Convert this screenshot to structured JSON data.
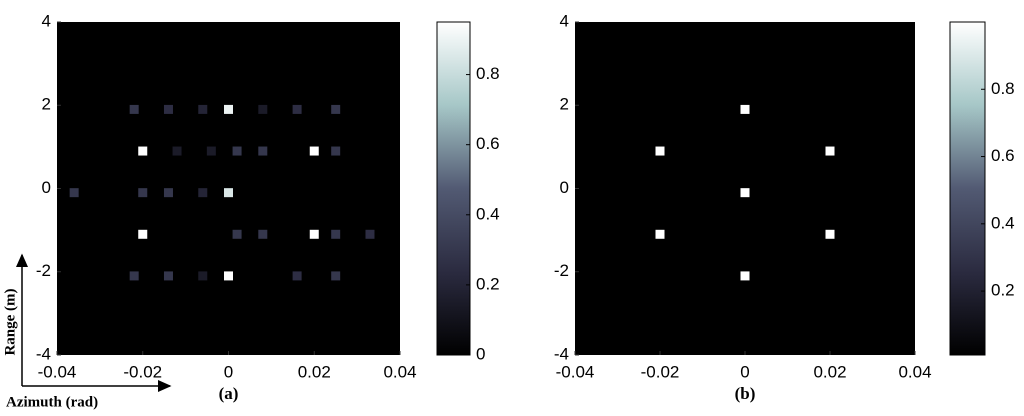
{
  "chart_data": [
    {
      "type": "heatmap",
      "caption": "(a)",
      "xlabel": "Azimuth (rad)",
      "ylabel": "Range (m)",
      "xlim": [
        -0.04,
        0.04
      ],
      "xticks": [
        -0.04,
        -0.02,
        0,
        0.02,
        0.04
      ],
      "ylim": [
        -4,
        4
      ],
      "yticks": [
        -4,
        -2,
        0,
        2,
        4
      ],
      "clim": [
        0,
        0.95
      ],
      "cticks": [
        0,
        0.2,
        0.4,
        0.6,
        0.8
      ],
      "colormap": [
        "#000000",
        "#2b2b40",
        "#525a73",
        "#a6c7c7",
        "#ffffff"
      ],
      "x": [
        -0.02,
        -0.02,
        0.02,
        0.02,
        0,
        0,
        0,
        -0.022,
        -0.014,
        -0.006,
        0.008,
        0.016,
        0.025,
        -0.012,
        -0.004,
        0.002,
        0.008,
        0.025,
        -0.036,
        -0.02,
        -0.014,
        -0.006,
        0.002,
        0.008,
        0.025,
        0.033,
        -0.022,
        -0.014,
        -0.006,
        0.016,
        0.025
      ],
      "y": [
        0.9,
        -1.1,
        0.9,
        -1.1,
        1.9,
        -0.1,
        -2.1,
        1.9,
        1.9,
        1.9,
        1.9,
        1.9,
        1.9,
        0.9,
        0.9,
        0.9,
        0.9,
        0.9,
        -0.1,
        -0.1,
        -0.1,
        -0.1,
        -1.1,
        -1.1,
        -1.1,
        -1.1,
        -2.1,
        -2.1,
        -2.1,
        -2.1,
        -2.1
      ],
      "values": [
        0.95,
        0.95,
        0.95,
        0.95,
        0.9,
        0.85,
        0.95,
        0.3,
        0.25,
        0.2,
        0.15,
        0.25,
        0.3,
        0.15,
        0.15,
        0.3,
        0.3,
        0.3,
        0.3,
        0.3,
        0.3,
        0.2,
        0.3,
        0.3,
        0.3,
        0.25,
        0.3,
        0.3,
        0.15,
        0.25,
        0.3
      ]
    },
    {
      "type": "heatmap",
      "caption": "(b)",
      "xlim": [
        -0.04,
        0.04
      ],
      "xticks": [
        -0.04,
        -0.02,
        0,
        0.02,
        0.04
      ],
      "ylim": [
        -4,
        4
      ],
      "yticks": [
        -4,
        -2,
        0,
        2,
        4
      ],
      "clim": [
        0.01,
        1
      ],
      "cticks": [
        0.2,
        0.4,
        0.6,
        0.8
      ],
      "colormap": [
        "#000000",
        "#2b2b40",
        "#525a73",
        "#a6c7c7",
        "#ffffff"
      ],
      "x": [
        -0.02,
        -0.02,
        0.02,
        0.02,
        0,
        0,
        0
      ],
      "y": [
        0.9,
        -1.1,
        0.9,
        -1.1,
        1.9,
        -0.1,
        -2.1
      ],
      "values": [
        1,
        1,
        1,
        1,
        1,
        1,
        1
      ]
    }
  ]
}
